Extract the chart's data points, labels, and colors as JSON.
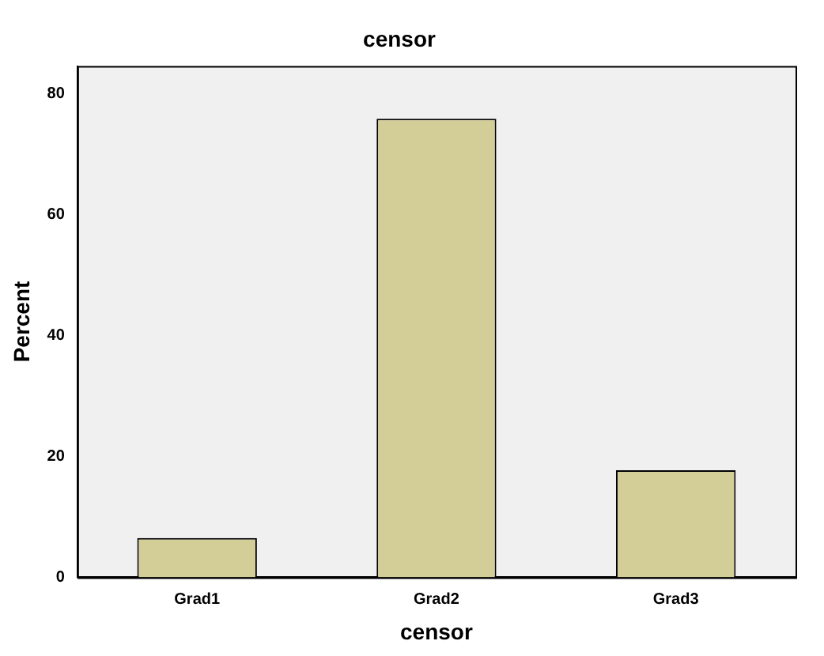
{
  "chart_data": {
    "type": "bar",
    "title": "censor",
    "xlabel": "censor",
    "ylabel": "Percent",
    "categories": [
      "Grad1",
      "Grad2",
      "Grad3"
    ],
    "values": [
      6.5,
      75.8,
      17.7
    ],
    "color": "#d3ce97",
    "ylim": [
      0,
      84.5
    ],
    "yticks": [
      0,
      20,
      40,
      60,
      80
    ],
    "grid": false,
    "legend": false
  }
}
